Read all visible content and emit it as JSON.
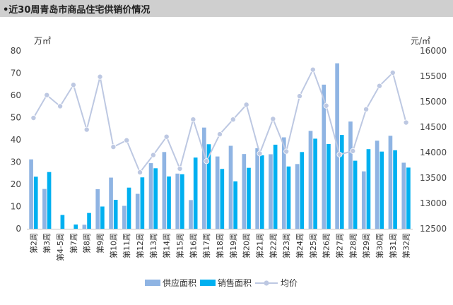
{
  "title": "•近30周青岛市商品住宅供销价情况",
  "colors": {
    "supply": "#8FB4E3",
    "sales": "#00B0F0",
    "price": "#BDC8E2",
    "title_bg": "#CFCFCF"
  },
  "chart_data": {
    "type": "bar",
    "categories": [
      "第2周",
      "第3周",
      "第4-5周",
      "第7周",
      "第8周",
      "第9周",
      "第10周",
      "第11周",
      "第12周",
      "第13周",
      "第14周",
      "第15周",
      "第16周",
      "第17周",
      "第18周",
      "第19周",
      "第20周",
      "第21周",
      "第22周",
      "第23周",
      "第24周",
      "第25周",
      "第26周",
      "第27周",
      "第28周",
      "第29周",
      "第30周",
      "第31周",
      "第32周"
    ],
    "series": [
      {
        "name": "供应面积",
        "kind": "bar",
        "axis": "left",
        "values": [
          31.2,
          17.9,
          0,
          0,
          1.8,
          17.8,
          23.0,
          10.3,
          15.7,
          29.5,
          34.5,
          24.8,
          12.9,
          45.5,
          32.5,
          37.3,
          33.6,
          36.2,
          33.5,
          41.1,
          29.1,
          44.0,
          64.8,
          74.4,
          48.2,
          25.8,
          39.6,
          41.8,
          29.7
        ]
      },
      {
        "name": "销售面积",
        "kind": "bar",
        "axis": "left",
        "values": [
          23.4,
          25.5,
          6.2,
          1.9,
          7.1,
          10.0,
          13.0,
          18.5,
          23.1,
          27.2,
          23.5,
          24.5,
          32.0,
          38.0,
          26.9,
          21.3,
          27.4,
          33.0,
          37.8,
          28.0,
          34.5,
          40.5,
          38.1,
          42.2,
          30.6,
          35.8,
          34.7,
          35.3,
          27.5
        ]
      },
      {
        "name": "均价",
        "kind": "line",
        "axis": "right",
        "values": [
          14680,
          15130,
          14910,
          15330,
          14450,
          15490,
          14110,
          14240,
          13610,
          13950,
          14310,
          13680,
          14650,
          13830,
          14360,
          14650,
          14940,
          13980,
          14660,
          14020,
          15110,
          15630,
          14920,
          13960,
          14030,
          14850,
          15310,
          15570,
          14590
        ]
      }
    ],
    "ylabel_left": "万㎡",
    "ylabel_right": "元/㎡",
    "ylim_left": [
      0,
      80
    ],
    "ylim_right": [
      12500,
      16000
    ],
    "yticks_left": [
      0,
      10,
      20,
      30,
      40,
      50,
      60,
      70,
      80
    ],
    "yticks_right": [
      12500,
      13000,
      13500,
      14000,
      14500,
      15000,
      15500,
      16000
    ],
    "legend_position": "bottom"
  }
}
